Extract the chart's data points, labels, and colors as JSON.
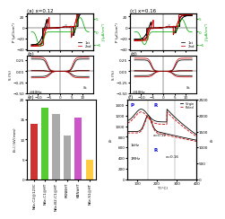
{
  "panels": {
    "a_label": "(a) x=0.12",
    "b_label": "(b)",
    "c_label": "(c) x=0.16",
    "d_label": "(d)",
    "e_label": "(e)",
    "f_label": "(f)"
  },
  "black_color": "#000000",
  "red_color": "#cc0000",
  "green_color": "#00aa00",
  "blue_color": "#0000cc",
  "gray_color": "#888888",
  "background_color": "#ffffff",
  "bar_labels": [
    "NKe-C2@123C",
    "NKe-C1@HT",
    "NKe-B2-C1@HT",
    "PKNBHT",
    "KBNbHT",
    "NKe-S1@HT"
  ],
  "bar_values": [
    14.0,
    18.0,
    16.5,
    11.0,
    15.5,
    5.0
  ],
  "bar_colors": [
    "#cc3333",
    "#55cc33",
    "#aaaaaa",
    "#aaaaaa",
    "#cc55cc",
    "#ffcc44"
  ],
  "at10Hz": "@10Hz",
  "legend_1st": "1st",
  "legend_2nd": "2nd"
}
